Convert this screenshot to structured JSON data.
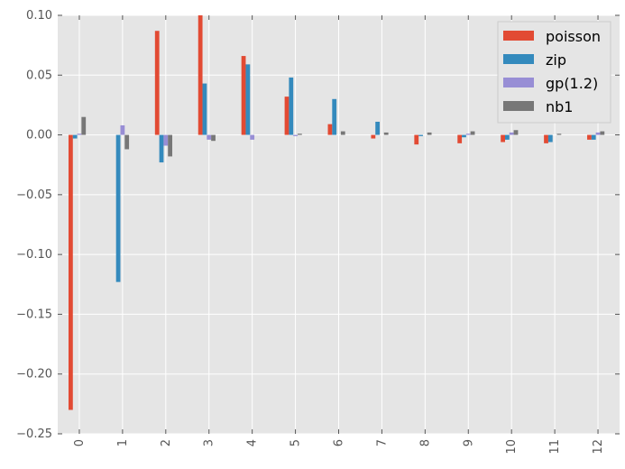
{
  "chart_data": {
    "type": "bar",
    "categories": [
      "0",
      "1",
      "2",
      "3",
      "4",
      "5",
      "6",
      "7",
      "8",
      "9",
      "10",
      "11",
      "12"
    ],
    "series": [
      {
        "name": "poisson",
        "color": "#e24a33",
        "values": [
          -0.23,
          0.0,
          0.087,
          0.1,
          0.066,
          0.032,
          0.009,
          -0.003,
          -0.008,
          -0.007,
          -0.006,
          -0.007,
          -0.004
        ]
      },
      {
        "name": "zip",
        "color": "#348abd",
        "values": [
          -0.003,
          -0.123,
          -0.023,
          0.043,
          0.059,
          0.048,
          0.03,
          0.011,
          -0.001,
          -0.002,
          -0.004,
          -0.006,
          -0.004
        ]
      },
      {
        "name": "gp(1.2)",
        "color": "#988ed5",
        "values": [
          0.001,
          0.008,
          -0.009,
          -0.004,
          -0.004,
          -0.001,
          0.0,
          0.0,
          0.0,
          0.001,
          0.002,
          0.0,
          0.002
        ]
      },
      {
        "name": "nb1",
        "color": "#777777",
        "values": [
          0.015,
          -0.012,
          -0.018,
          -0.005,
          0.0,
          0.001,
          0.003,
          0.002,
          0.002,
          0.003,
          0.004,
          0.001,
          0.003
        ]
      }
    ],
    "ylim": [
      -0.25,
      0.1
    ],
    "yticks": [
      0.1,
      0.05,
      0.0,
      -0.05,
      -0.1,
      -0.15,
      -0.2,
      -0.25
    ],
    "ytick_labels": [
      "0.10",
      "0.05",
      "0.00",
      "−0.05",
      "−0.10",
      "−0.15",
      "−0.20",
      "−0.25"
    ],
    "xtick_labels": [
      "0",
      "1",
      "2",
      "3",
      "4",
      "5",
      "6",
      "7",
      "8",
      "9",
      "10",
      "11",
      "12"
    ],
    "grid": true,
    "legend": "top-right",
    "style": {
      "plot_background": "#e5e5e5",
      "grid_color": "#ffffff",
      "tick_label_color": "#555555"
    }
  }
}
